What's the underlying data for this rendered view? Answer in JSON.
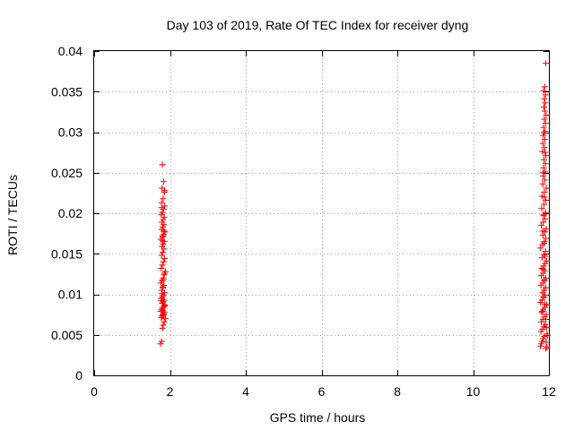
{
  "chart_data": {
    "type": "scatter",
    "title": "Day 103 of 2019, Rate Of TEC Index for receiver dyng",
    "xlabel": "GPS time / hours",
    "ylabel": "ROTI / TECUs",
    "xlim": [
      0,
      12
    ],
    "ylim": [
      0,
      0.04
    ],
    "grid": true,
    "x_ticks": [
      0,
      2,
      4,
      6,
      8,
      10,
      12
    ],
    "x_tick_labels": [
      "0",
      "2",
      "4",
      "6",
      "8",
      "10",
      "12"
    ],
    "y_ticks": [
      0,
      0.005,
      0.01,
      0.015,
      0.02,
      0.025,
      0.03,
      0.035,
      0.04
    ],
    "y_tick_labels": [
      "0",
      "0.005",
      "0.01",
      "0.015",
      "0.02",
      "0.025",
      "0.03",
      "0.035",
      "0.04"
    ],
    "marker": "+",
    "marker_color": "#ff0000",
    "series": [
      {
        "name": "ROTI",
        "x": [
          1.75,
          1.78,
          1.8,
          1.82,
          1.85,
          1.88,
          1.77,
          1.79,
          1.81,
          1.83,
          1.86,
          1.76,
          1.78,
          1.8,
          1.84,
          1.87,
          1.79,
          1.82,
          1.85,
          1.77,
          1.8,
          1.83,
          1.86,
          1.78,
          1.81,
          1.84,
          1.76,
          1.79,
          1.82,
          1.85,
          1.88,
          1.77,
          1.8,
          1.83,
          1.86,
          1.78,
          1.81,
          1.84,
          1.79,
          1.82,
          1.85,
          1.76,
          1.8,
          1.83,
          1.87,
          1.78,
          1.81,
          1.84,
          1.79,
          1.82,
          1.85,
          1.77,
          1.8,
          1.83,
          1.86,
          1.78,
          1.82,
          1.85,
          1.79,
          1.83,
          1.8,
          1.84,
          1.81,
          1.86,
          1.77,
          1.79,
          1.81,
          1.83,
          1.85,
          1.8,
          1.82,
          1.84,
          1.78,
          1.86,
          11.78,
          11.8,
          11.82,
          11.85,
          11.88,
          11.92,
          11.95,
          11.79,
          11.83,
          11.87,
          11.9,
          11.8,
          11.84,
          11.88,
          11.93,
          11.81,
          11.85,
          11.89,
          11.94,
          11.78,
          11.82,
          11.86,
          11.9,
          11.83,
          11.87,
          11.91,
          11.79,
          11.84,
          11.88,
          11.92,
          11.8,
          11.85,
          11.89,
          11.81,
          11.86,
          11.9,
          11.94,
          11.82,
          11.87,
          11.91,
          11.78,
          11.83,
          11.88,
          11.92,
          11.84,
          11.89,
          11.93,
          11.8,
          11.85,
          11.9,
          11.86,
          11.91,
          11.81,
          11.87,
          11.92,
          11.82,
          11.88,
          11.93,
          11.84,
          11.89,
          11.85,
          11.9,
          11.86,
          11.91,
          11.87,
          11.92,
          11.83,
          11.88,
          11.84,
          11.89,
          11.85,
          11.9,
          11.86,
          11.91,
          11.88,
          11.93,
          11.89,
          11.87,
          11.9,
          11.88,
          11.91,
          11.86,
          11.89,
          11.92,
          11.87,
          11.9,
          11.85,
          11.88,
          11.86,
          11.84,
          11.87,
          11.9,
          11.85,
          11.88,
          11.91,
          11.86,
          11.89,
          11.83,
          11.92,
          11.94,
          11.96,
          11.93,
          11.95
        ],
        "y": [
          0.0039,
          0.0042,
          0.0058,
          0.0062,
          0.0066,
          0.007,
          0.0071,
          0.0073,
          0.0074,
          0.0076,
          0.0078,
          0.0079,
          0.0081,
          0.0083,
          0.0085,
          0.0087,
          0.0089,
          0.0091,
          0.0093,
          0.0095,
          0.0097,
          0.0099,
          0.0102,
          0.0105,
          0.0108,
          0.0111,
          0.0114,
          0.0117,
          0.012,
          0.0124,
          0.0128,
          0.0132,
          0.0136,
          0.014,
          0.0144,
          0.0148,
          0.0152,
          0.0156,
          0.0159,
          0.0162,
          0.0165,
          0.0168,
          0.0171,
          0.0174,
          0.0177,
          0.018,
          0.0183,
          0.0186,
          0.0189,
          0.0192,
          0.0195,
          0.0198,
          0.0201,
          0.0205,
          0.0209,
          0.0213,
          0.0218,
          0.0226,
          0.0231,
          0.0239,
          0.026,
          0.0075,
          0.008,
          0.0086,
          0.0092,
          0.0101,
          0.0109,
          0.0118,
          0.0126,
          0.0166,
          0.0172,
          0.0178,
          0.0207,
          0.0228,
          0.0036,
          0.0039,
          0.0042,
          0.0045,
          0.0048,
          0.0033,
          0.0051,
          0.0054,
          0.0057,
          0.006,
          0.0063,
          0.0066,
          0.0069,
          0.0072,
          0.0075,
          0.0078,
          0.0081,
          0.0084,
          0.0087,
          0.009,
          0.0093,
          0.0096,
          0.0099,
          0.0102,
          0.0105,
          0.0108,
          0.0111,
          0.0114,
          0.0117,
          0.012,
          0.0123,
          0.0126,
          0.0129,
          0.0132,
          0.0135,
          0.0138,
          0.0141,
          0.0145,
          0.0149,
          0.0153,
          0.0157,
          0.0161,
          0.0165,
          0.0169,
          0.0173,
          0.0177,
          0.0181,
          0.0185,
          0.0189,
          0.0193,
          0.0197,
          0.0201,
          0.0206,
          0.0211,
          0.0216,
          0.0221,
          0.0226,
          0.0231,
          0.0236,
          0.0241,
          0.0246,
          0.0251,
          0.0256,
          0.0261,
          0.0266,
          0.0271,
          0.0276,
          0.0281,
          0.0286,
          0.0291,
          0.0296,
          0.0301,
          0.0306,
          0.0311,
          0.0316,
          0.0321,
          0.0326,
          0.0331,
          0.0336,
          0.0341,
          0.0346,
          0.0351,
          0.0356,
          0.0385,
          0.0299,
          0.0275,
          0.025,
          0.022,
          0.0198,
          0.0178,
          0.0163,
          0.0147,
          0.0131,
          0.0118,
          0.0108,
          0.0097,
          0.0088,
          0.0079,
          0.0069,
          0.0059,
          0.0049,
          0.0041,
          0.0035
        ]
      }
    ]
  }
}
